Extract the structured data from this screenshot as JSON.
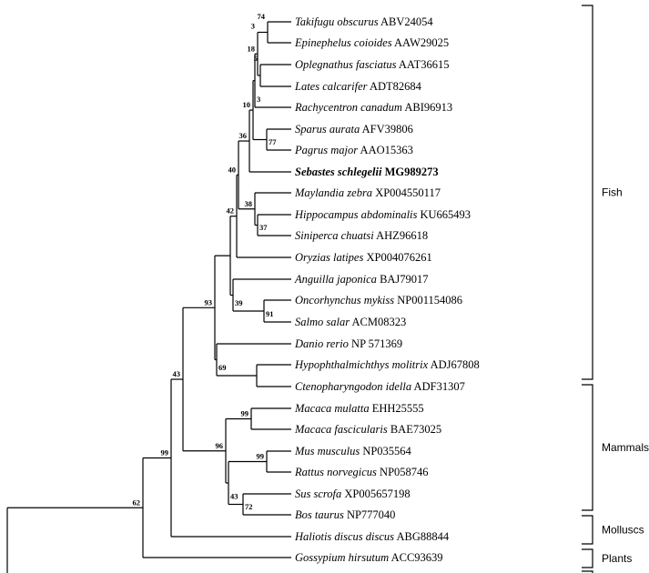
{
  "figure": {
    "type": "phylogenetic-tree",
    "taxa": [
      {
        "species": "Takifugu obscurus",
        "accession": "ABV24054"
      },
      {
        "species": "Epinephelus coioides",
        "accession": "AAW29025"
      },
      {
        "species": "Oplegnathus fasciatus",
        "accession": "AAT36615"
      },
      {
        "species": "Lates calcarifer",
        "accession": "ADT82684"
      },
      {
        "species": "Rachycentron canadum",
        "accession": "ABI96913"
      },
      {
        "species": "Sparus aurata",
        "accession": "AFV39806"
      },
      {
        "species": "Pagrus major",
        "accession": "AAO15363"
      },
      {
        "species": "Sebastes schlegelii",
        "accession": "MG989273",
        "highlight": true
      },
      {
        "species": "Maylandia zebra",
        "accession": "XP004550117"
      },
      {
        "species": "Hippocampus abdominalis",
        "accession": "KU665493"
      },
      {
        "species": "Siniperca chuatsi",
        "accession": "AHZ96618"
      },
      {
        "species": "Oryzias latipes",
        "accession": "XP004076261"
      },
      {
        "species": "Anguilla japonica",
        "accession": "BAJ79017"
      },
      {
        "species": "Oncorhynchus mykiss",
        "accession": "NP001154086"
      },
      {
        "species": "Salmo salar",
        "accession": "ACM08323"
      },
      {
        "species": "Danio rerio",
        "accession": "NP 571369"
      },
      {
        "species": "Hypophthalmichthys molitrix",
        "accession": "ADJ67808"
      },
      {
        "species": "Ctenopharyngodon idella",
        "accession": "ADF31307"
      },
      {
        "species": "Macaca mulatta",
        "accession": "EHH25555"
      },
      {
        "species": "Macaca fascicularis",
        "accession": "BAE73025"
      },
      {
        "species": "Mus musculus",
        "accession": "NP035564"
      },
      {
        "species": "Rattus norvegicus",
        "accession": "NP058746"
      },
      {
        "species": "Sus scrofa",
        "accession": "XP005657198"
      },
      {
        "species": "Bos taurus",
        "accession": "NP777040"
      },
      {
        "species": "Haliotis discus discus",
        "accession": "ABG88844"
      },
      {
        "species": "Gossypium hirsutum",
        "accession": "ACC93639"
      }
    ],
    "support_values": [
      "74",
      "3",
      "5",
      "18",
      "3",
      "10",
      "77",
      "36",
      "40",
      "38",
      "37",
      "42",
      "39",
      "93",
      "91",
      "69",
      "99",
      "43",
      "99",
      "96",
      "99",
      "43",
      "72",
      "62"
    ],
    "groups": [
      "Fish",
      "Mammals",
      "Molluscs",
      "Plants"
    ]
  }
}
